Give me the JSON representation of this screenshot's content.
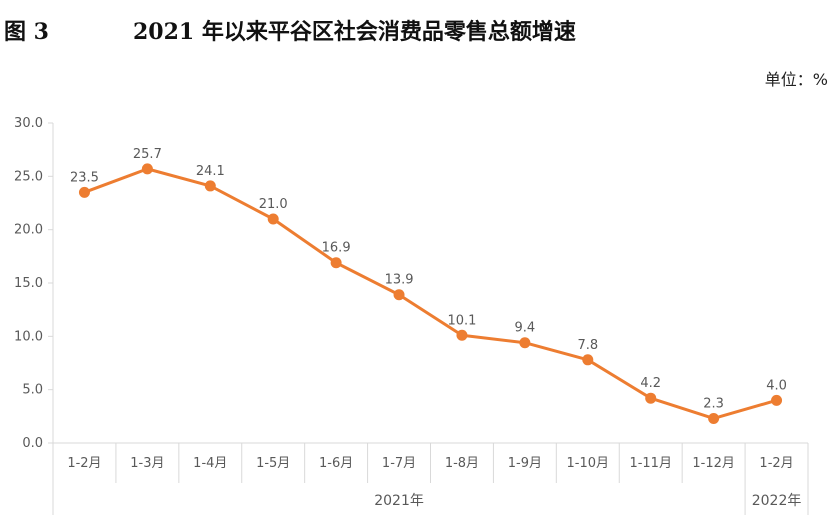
{
  "figure": {
    "label": "图 3",
    "title": "2021 年以来平谷区社会消费品零售总额增速",
    "unit": "单位：%"
  },
  "chart_data": {
    "type": "line",
    "categories": [
      "1-2月",
      "1-3月",
      "1-4月",
      "1-5月",
      "1-6月",
      "1-7月",
      "1-8月",
      "1-9月",
      "1-10月",
      "1-11月",
      "1-12月",
      "1-2月"
    ],
    "series": [
      {
        "values": [
          23.5,
          25.7,
          24.1,
          21.0,
          16.9,
          13.9,
          10.1,
          9.4,
          7.8,
          4.2,
          2.3,
          4.0
        ]
      }
    ],
    "data_labels": [
      "23.5",
      "25.7",
      "24.1",
      "21.0",
      "16.9",
      "13.9",
      "10.1",
      "9.4",
      "7.8",
      "4.2",
      "2.3",
      "4.0"
    ],
    "y_ticks": [
      "0.0",
      "5.0",
      "10.0",
      "15.0",
      "20.0",
      "25.0",
      "30.0"
    ],
    "ylim": [
      0,
      30
    ],
    "groups": [
      {
        "label": "2021年",
        "span": [
          0,
          10
        ]
      },
      {
        "label": "2022年",
        "span": [
          11,
          11
        ]
      }
    ],
    "grid": false,
    "color": "#ED7D31"
  }
}
